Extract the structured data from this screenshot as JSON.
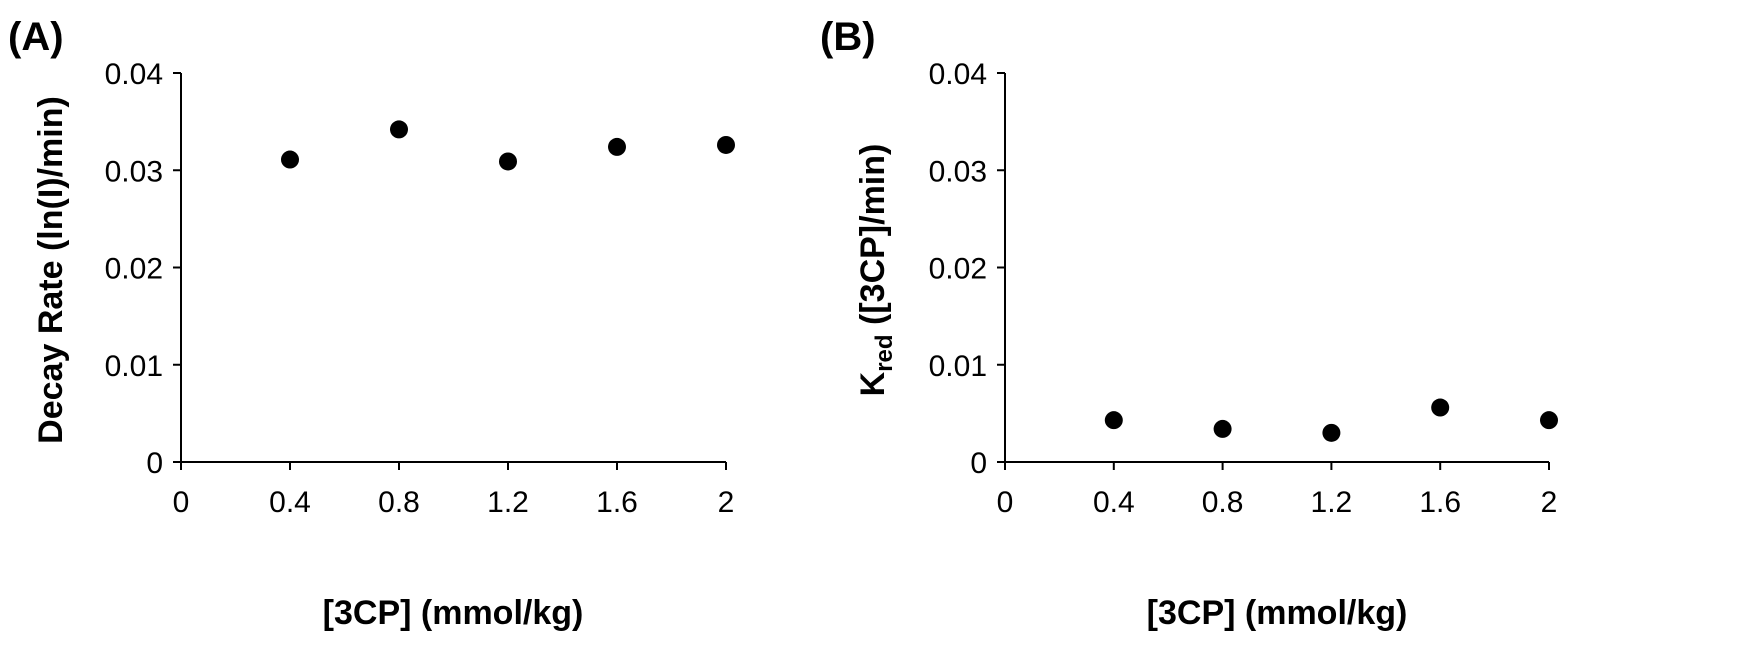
{
  "chart_data": [
    {
      "type": "scatter",
      "panel_label": "(A)",
      "xlabel": "[3CP] (mmol/kg)",
      "ylabel": "Decay Rate (ln(I)/min)",
      "xlim": [
        0,
        2
      ],
      "ylim": [
        0,
        0.04
      ],
      "x_ticks": [
        "0",
        "0.4",
        "0.8",
        "1.2",
        "1.6",
        "2"
      ],
      "y_ticks": [
        "0",
        "0.01",
        "0.02",
        "0.03",
        "0.04"
      ],
      "grid": false,
      "color": "#000000",
      "x": [
        0.4,
        0.8,
        1.2,
        1.6,
        2.0
      ],
      "y": [
        0.0311,
        0.0342,
        0.0309,
        0.0324,
        0.0326
      ]
    },
    {
      "type": "scatter",
      "panel_label": "(B)",
      "xlabel": "[3CP] (mmol/kg)",
      "ylabel_main": "K",
      "ylabel_sub": "red",
      "ylabel_rest": " ([3CP]/min)",
      "xlim": [
        0,
        2
      ],
      "ylim": [
        0,
        0.04
      ],
      "x_ticks": [
        "0",
        "0.4",
        "0.8",
        "1.2",
        "1.6",
        "2"
      ],
      "y_ticks": [
        "0",
        "0.01",
        "0.02",
        "0.03",
        "0.04"
      ],
      "grid": false,
      "color": "#000000",
      "x": [
        0.4,
        0.8,
        1.2,
        1.6,
        2.0
      ],
      "y": [
        0.0043,
        0.0034,
        0.003,
        0.0056,
        0.0043
      ]
    }
  ]
}
